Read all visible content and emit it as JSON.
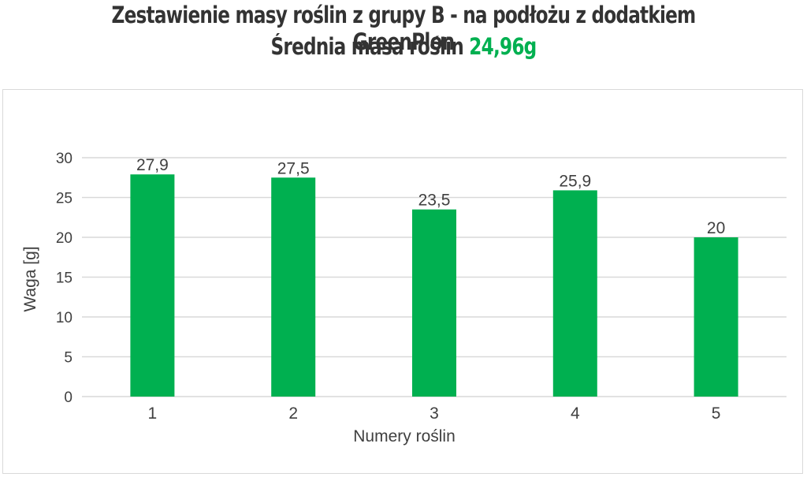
{
  "header": {
    "title": "Zestawienie masy roślin z grupy B - na podłożu z dodatkiem GreenPlon",
    "subtitle_prefix": "Średnia masa roślin",
    "subtitle_value": "24,96g"
  },
  "colors": {
    "bar": "#00b050",
    "highlight": "#00b050",
    "grid": "#d9d9d9",
    "text": "#404040"
  },
  "chart_data": {
    "type": "bar",
    "categories": [
      "1",
      "2",
      "3",
      "4",
      "5"
    ],
    "values": [
      27.9,
      27.5,
      23.5,
      25.9,
      20
    ],
    "data_labels": [
      "27,9",
      "27,5",
      "23,5",
      "25,9",
      "20"
    ],
    "xlabel": "Numery roślin",
    "ylabel": "Waga [g]",
    "ylim": [
      0,
      30
    ],
    "yticks": [
      0,
      5,
      10,
      15,
      20,
      25,
      30
    ],
    "grid": true,
    "legend": "none"
  }
}
